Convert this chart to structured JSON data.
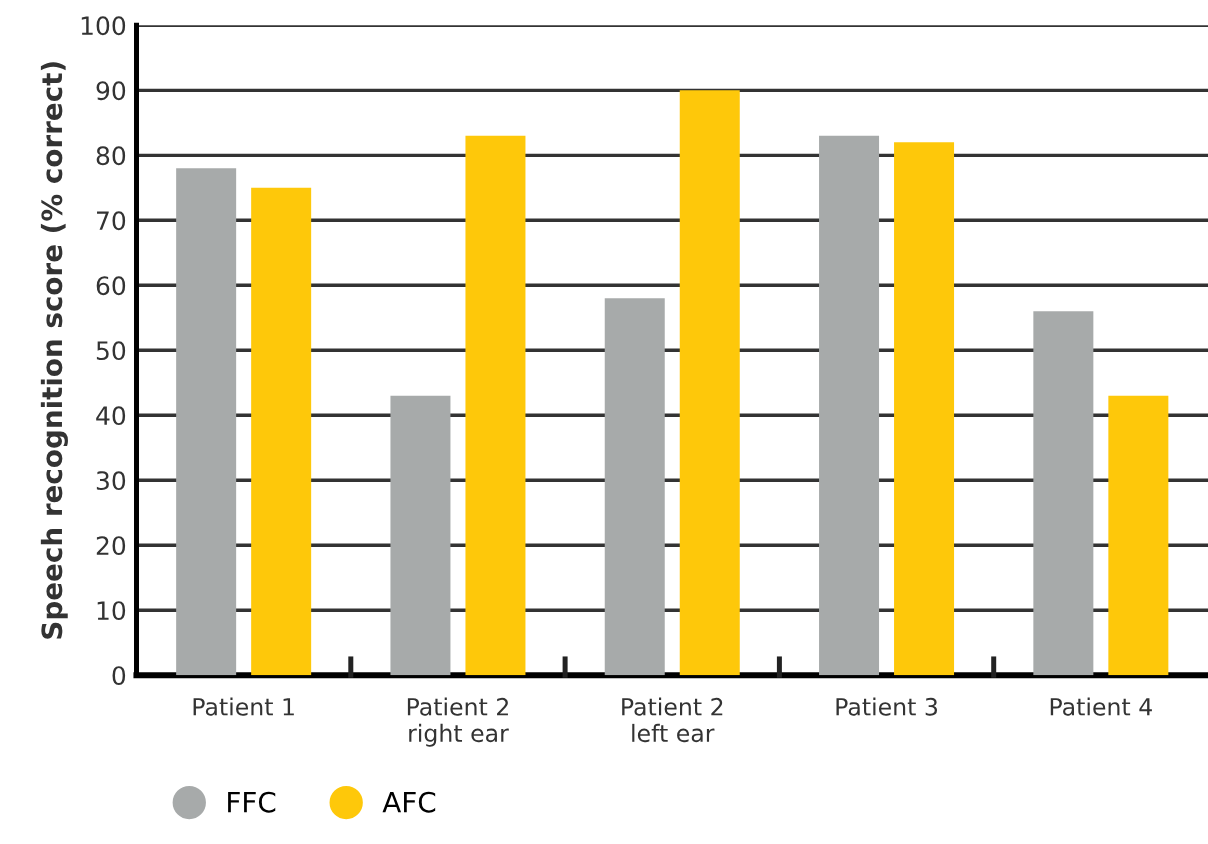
{
  "chart_data": {
    "type": "bar",
    "ylabel": "Speech recognition score (% correct)",
    "categories": [
      "Patient 1",
      "Patient 2\nright ear",
      "Patient 2\nleft ear",
      "Patient 3",
      "Patient 4"
    ],
    "series": [
      {
        "name": "FFC",
        "color": "#a7aaaa",
        "values": [
          78,
          43,
          58,
          83,
          56
        ]
      },
      {
        "name": "AFC",
        "color": "#fec80a",
        "values": [
          75,
          83,
          90,
          82,
          43
        ]
      }
    ],
    "ylim": [
      0,
      100
    ],
    "yticks": [
      0,
      10,
      20,
      30,
      40,
      50,
      60,
      70,
      80,
      90,
      100
    ],
    "grid": "y",
    "legend": "bottom left"
  }
}
